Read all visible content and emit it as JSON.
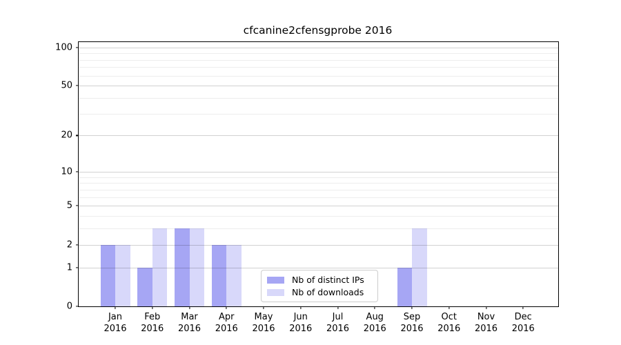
{
  "chart_data": {
    "type": "bar",
    "title": "cfcanine2cfensgprobe 2016",
    "categories": [
      "Jan 2016",
      "Feb 2016",
      "Mar 2016",
      "Apr 2016",
      "May 2016",
      "Jun 2016",
      "Jul 2016",
      "Aug 2016",
      "Sep 2016",
      "Oct 2016",
      "Nov 2016",
      "Dec 2016"
    ],
    "x": {
      "months": [
        "Jan",
        "Feb",
        "Mar",
        "Apr",
        "May",
        "Jun",
        "Jul",
        "Aug",
        "Sep",
        "Oct",
        "Nov",
        "Dec"
      ],
      "year": "2016"
    },
    "series": [
      {
        "name": "Nb of distinct IPs",
        "color": "#a6a6f4",
        "values": [
          2,
          1,
          3,
          2,
          0,
          0,
          0,
          0,
          1,
          0,
          0,
          0
        ]
      },
      {
        "name": "Nb of downloads",
        "color": "#d8d8fa",
        "values": [
          2,
          3,
          3,
          2,
          0,
          0,
          0,
          0,
          3,
          0,
          0,
          0
        ]
      }
    ],
    "y_axis": {
      "scale": "log1p",
      "ticks": [
        0,
        1,
        2,
        5,
        10,
        20,
        50,
        100
      ],
      "minor_ticks": [
        3,
        4,
        6,
        7,
        8,
        9,
        30,
        40,
        60,
        70,
        80,
        90
      ],
      "ylim": [
        0,
        110
      ]
    },
    "legend": {
      "position": "lower-center",
      "entries": [
        "Nb of distinct IPs",
        "Nb of downloads"
      ]
    },
    "grid": true,
    "background": "#ffffff",
    "axis_color": "#000000"
  }
}
